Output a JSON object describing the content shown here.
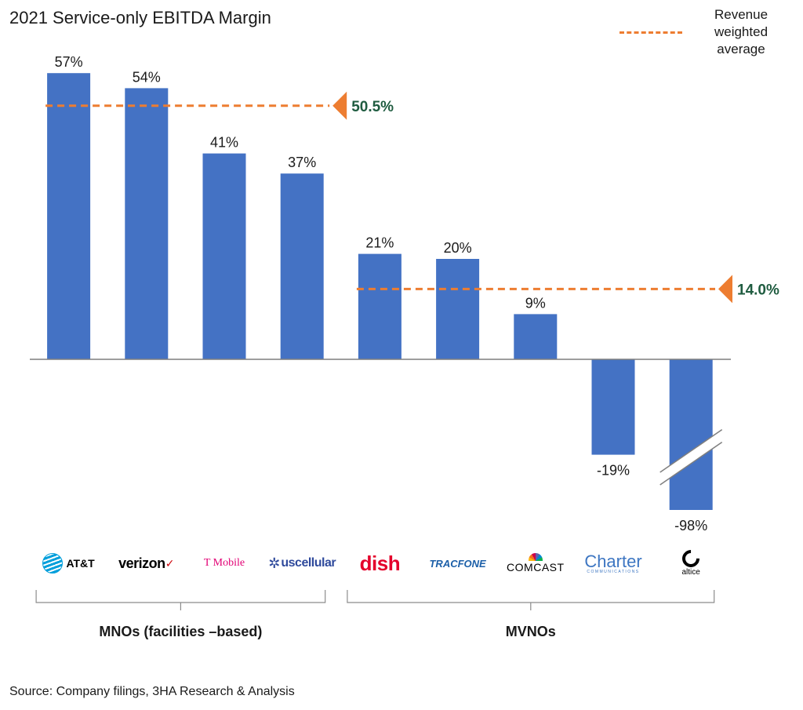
{
  "title": "2021 Service-only EBITDA Margin",
  "legend": {
    "label": "Revenue weighted average",
    "color": "#ed7d31"
  },
  "source": "Source: Company filings, 3HA Research & Analysis",
  "colors": {
    "bar": "#4472c4",
    "avg_line": "#ed7d31",
    "avg_label": "#1f5c40",
    "axis": "#7f7f7f"
  },
  "groups": [
    {
      "label": "MNOs (facilities –based)",
      "members": [
        0,
        1,
        2,
        3
      ]
    },
    {
      "label": "MVNOs",
      "members": [
        4,
        5,
        6,
        7,
        8
      ]
    }
  ],
  "logos": [
    {
      "company": "AT&T",
      "text": "AT&T",
      "color": "#000000",
      "icon": "att-globe-icon",
      "icon_color": "#009fdb"
    },
    {
      "company": "Verizon",
      "text": "verizon",
      "mark": "✓",
      "color": "#000000",
      "mark_color": "#cd040b"
    },
    {
      "company": "T-Mobile",
      "text": "T Mobile",
      "color": "#e20074"
    },
    {
      "company": "US Cellular",
      "text": "uscellular",
      "mark": "✲",
      "color": "#2f4a9c"
    },
    {
      "company": "Dish",
      "text": "dish",
      "color": "#e4002b"
    },
    {
      "company": "Tracfone",
      "text": "TRACFONE",
      "color": "#1c5fa8"
    },
    {
      "company": "Comcast",
      "text": "COMCAST",
      "color": "#000000",
      "icon": "nbc-peacock-icon"
    },
    {
      "company": "Charter",
      "text": "Charter",
      "sub": "COMMUNICATIONS",
      "color": "#3d76c2"
    },
    {
      "company": "Altice",
      "text": "altice",
      "color": "#000000",
      "icon": "altice-a-icon"
    }
  ],
  "chart_data": {
    "type": "bar",
    "title": "2021 Service-only EBITDA Margin",
    "categories": [
      "AT&T",
      "Verizon",
      "T-Mobile",
      "US Cellular",
      "Dish",
      "Tracfone",
      "Comcast",
      "Charter",
      "Altice"
    ],
    "values": [
      57,
      54,
      41,
      37,
      21,
      20,
      9,
      -19,
      -98
    ],
    "data_labels": [
      "57%",
      "54%",
      "41%",
      "37%",
      "21%",
      "20%",
      "9%",
      "-19%",
      "-98%"
    ],
    "y_unit": "%",
    "ylim": [
      -30,
      57
    ],
    "axis_break": {
      "category_index": 8,
      "note": "bar truncated with break mark"
    },
    "reference_lines": [
      {
        "name": "Revenue weighted average",
        "value": 50.5,
        "label": "50.5%",
        "applies_to": [
          0,
          1,
          2,
          3
        ]
      },
      {
        "name": "Revenue weighted average",
        "value": 14.0,
        "label": "14.0%",
        "applies_to": [
          4,
          5,
          6,
          7,
          8
        ]
      }
    ],
    "legend": {
      "entries": [
        "Revenue weighted average"
      ],
      "position": "top-right"
    },
    "grid": false
  }
}
